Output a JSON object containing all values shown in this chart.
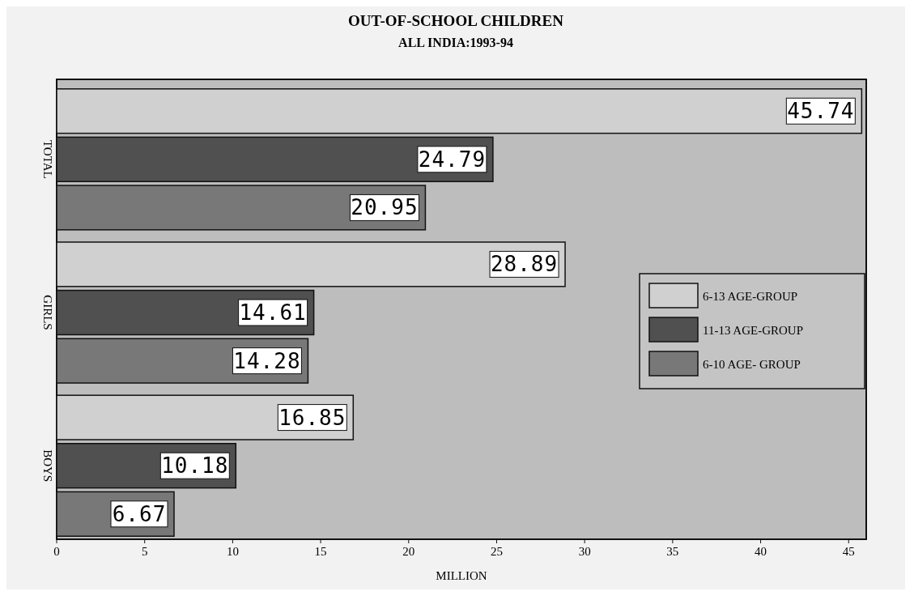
{
  "chart_data": {
    "type": "bar",
    "orientation": "horizontal",
    "title": "OUT-OF-SCHOOL CHILDREN",
    "subtitle": "ALL INDIA:1993-94",
    "xlabel": "MILLION",
    "categories": [
      "TOTAL",
      "GIRLS",
      "BOYS"
    ],
    "series": [
      {
        "name": "6-13 AGE-GROUP",
        "color": "#d0d0d0",
        "values": [
          45.74,
          28.89,
          16.85
        ]
      },
      {
        "name": "11-13 AGE-GROUP",
        "color": "#505050",
        "values": [
          24.79,
          14.61,
          10.18
        ]
      },
      {
        "name": "6-10 AGE- GROUP",
        "color": "#787878",
        "values": [
          20.95,
          14.28,
          6.67
        ]
      }
    ],
    "xlim": [
      0,
      46
    ],
    "xticks": [
      0,
      5,
      10,
      15,
      20,
      25,
      30,
      35,
      40,
      45
    ],
    "data_labels": true,
    "legend": "right",
    "grid": false
  }
}
